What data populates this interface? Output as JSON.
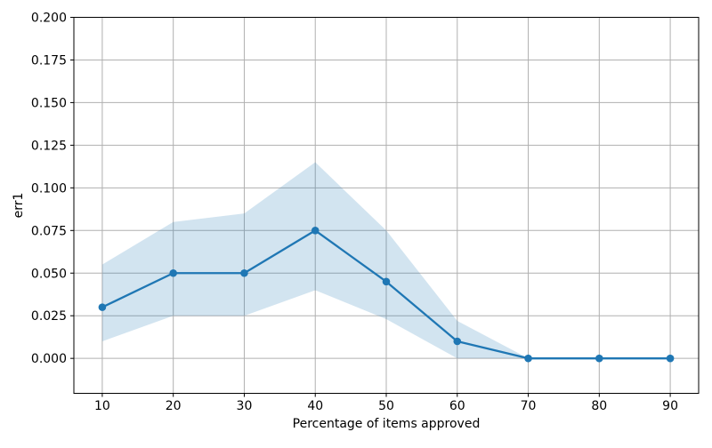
{
  "figure": {
    "background": "#ffffff"
  },
  "chart_data": {
    "type": "line",
    "title": "",
    "xlabel": "Percentage of items approved",
    "ylabel": "err1",
    "x": [
      10,
      20,
      30,
      40,
      50,
      60,
      70,
      80,
      90
    ],
    "series": [
      {
        "name": "err1",
        "values": [
          0.03,
          0.05,
          0.05,
          0.075,
          0.045,
          0.01,
          0.0,
          0.0,
          0.0
        ],
        "band_lower": [
          0.01,
          0.025,
          0.025,
          0.04,
          0.023,
          0.0,
          0.0,
          0.0,
          0.0
        ],
        "band_upper": [
          0.055,
          0.08,
          0.085,
          0.115,
          0.075,
          0.022,
          0.0,
          0.0,
          0.0
        ],
        "color": "#1f77b4",
        "band_color": "rgba(31,119,180,0.2)",
        "marker": "circle"
      }
    ],
    "xlim": [
      6,
      94
    ],
    "ylim": [
      -0.0205,
      0.2
    ],
    "xticks": [
      10,
      20,
      30,
      40,
      50,
      60,
      70,
      80,
      90
    ],
    "xtick_labels": [
      "10",
      "20",
      "30",
      "40",
      "50",
      "60",
      "70",
      "80",
      "90"
    ],
    "yticks": [
      0.0,
      0.025,
      0.05,
      0.075,
      0.1,
      0.125,
      0.15,
      0.175,
      0.2
    ],
    "ytick_labels": [
      "0.000",
      "0.025",
      "0.050",
      "0.075",
      "0.100",
      "0.125",
      "0.150",
      "0.175",
      "0.200"
    ],
    "grid": true,
    "grid_color": "#b0b0b0",
    "spine_color": "#000000",
    "text_color": "#000000",
    "legend": "none"
  }
}
